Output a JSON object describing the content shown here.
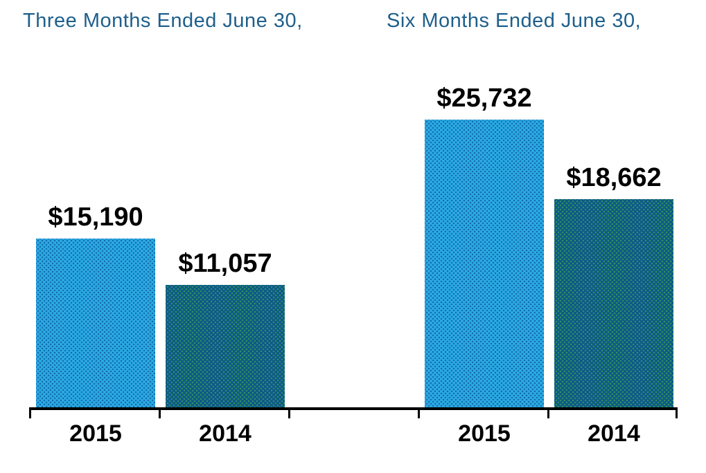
{
  "chart_data": {
    "type": "bar",
    "title": "",
    "grid": false,
    "legend_position": "none",
    "ylim": [
      0,
      26000
    ],
    "value_format": "$#,##0",
    "colors": {
      "bar_2015": "#29a9e1",
      "bar_2014": "#0d5a89",
      "group_title_text": "#1e5f8c",
      "axis": "#000000",
      "data_label_text": "#000000"
    },
    "groups": [
      {
        "title": "Three Months Ended June 30,",
        "bars": [
          {
            "category": "2015",
            "value": 15190,
            "label": "$15,190",
            "color_key": "light"
          },
          {
            "category": "2014",
            "value": 11057,
            "label": "$11,057",
            "color_key": "dark"
          }
        ]
      },
      {
        "title": "Six Months Ended June 30,",
        "bars": [
          {
            "category": "2015",
            "value": 25732,
            "label": "$25,732",
            "color_key": "light"
          },
          {
            "category": "2014",
            "value": 18662,
            "label": "$18,662",
            "color_key": "dark"
          }
        ]
      }
    ]
  }
}
